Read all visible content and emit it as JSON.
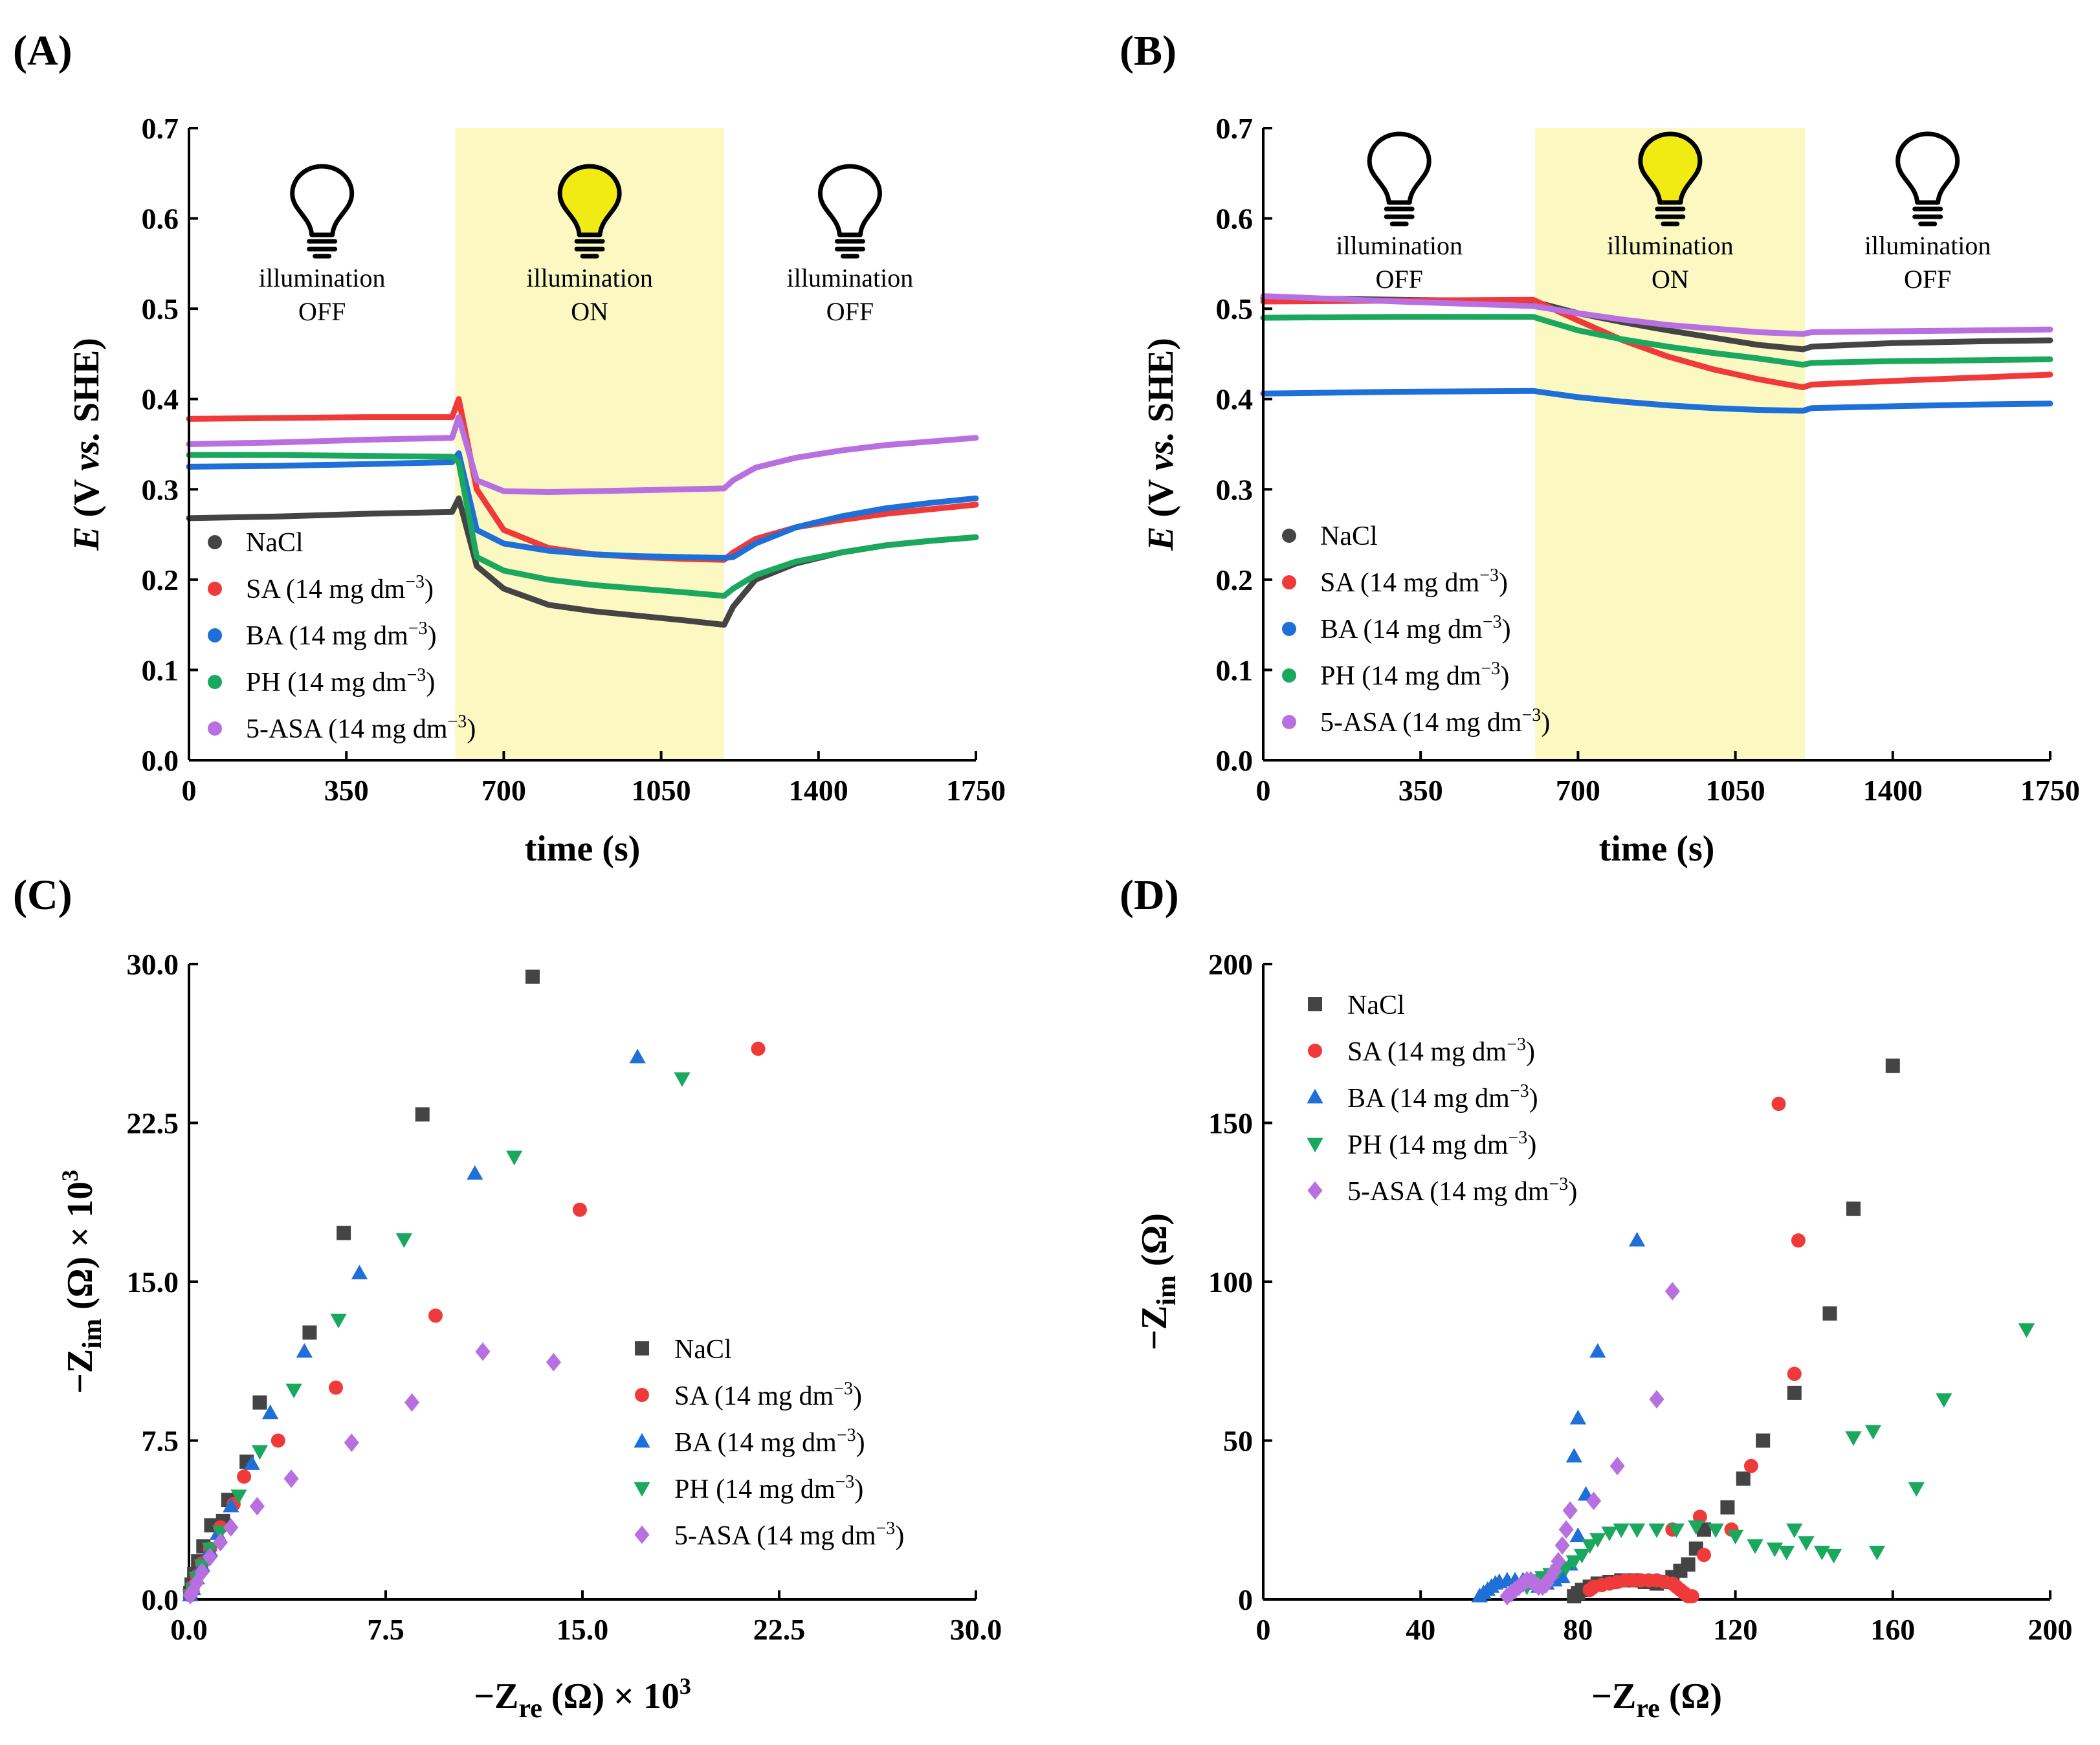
{
  "panels": {
    "A": "(A)",
    "B": "(B)",
    "C": "(C)",
    "D": "(D)"
  },
  "series_colors": {
    "NaCl": "#444444",
    "SA": "#f03a3a",
    "BA": "#1f6fd8",
    "PH": "#1aa85e",
    "5-ASA": "#b870e0"
  },
  "highlight_color": "#fbf8c2",
  "bulb_on_color": "#f2ea13",
  "legend_labels": [
    {
      "key": "NaCl",
      "name": "NaCl",
      "sup": ""
    },
    {
      "key": "SA",
      "name": "SA (14 mg dm",
      "sup": "−3",
      "close": ")"
    },
    {
      "key": "BA",
      "name": "BA (14 mg dm",
      "sup": "−3",
      "close": ")"
    },
    {
      "key": "PH",
      "name": "PH (14 mg dm",
      "sup": "−3",
      "close": ")"
    },
    {
      "key": "5-ASA",
      "name": "5-ASA (14 mg dm",
      "sup": "−3",
      "close": ")"
    }
  ],
  "illumination": {
    "off_top": "illumination",
    "off_bottom": "OFF",
    "on_top": "illumination",
    "on_bottom": "ON"
  },
  "chart_data": [
    {
      "id": "A",
      "type": "line",
      "title": "",
      "xlabel": "time (s)",
      "ylabel": {
        "italic": "E",
        "rest1": " (V ",
        "italic2": "vs.",
        "rest2": " SHE)"
      },
      "xlim": [
        0,
        1750
      ],
      "ylim": [
        0.0,
        0.7
      ],
      "xticks": [
        0,
        350,
        700,
        1050,
        1400,
        1750
      ],
      "xtick_labels": [
        "0",
        "350",
        "700",
        "1050",
        "1400",
        "1750"
      ],
      "yticks": [
        0.0,
        0.1,
        0.2,
        0.3,
        0.4,
        0.5,
        0.6,
        0.7
      ],
      "ytick_labels": [
        "0.0",
        "0.1",
        "0.2",
        "0.3",
        "0.4",
        "0.5",
        "0.6",
        "0.7"
      ],
      "light_on_interval": [
        592,
        1190
      ],
      "legend_position": "lower-left",
      "series": [
        {
          "name": "NaCl",
          "x": [
            0,
            200,
            400,
            585,
            600,
            640,
            700,
            800,
            900,
            1000,
            1100,
            1190,
            1210,
            1260,
            1350,
            1450,
            1550,
            1650,
            1750
          ],
          "values": [
            0.268,
            0.27,
            0.273,
            0.275,
            0.29,
            0.215,
            0.19,
            0.172,
            0.165,
            0.16,
            0.155,
            0.15,
            0.17,
            0.2,
            0.218,
            0.23,
            0.238,
            0.243,
            0.247
          ]
        },
        {
          "name": "SA",
          "x": [
            0,
            200,
            400,
            585,
            600,
            640,
            700,
            800,
            900,
            1000,
            1100,
            1190,
            1210,
            1260,
            1350,
            1450,
            1550,
            1650,
            1750
          ],
          "values": [
            0.378,
            0.379,
            0.38,
            0.38,
            0.4,
            0.3,
            0.255,
            0.235,
            0.228,
            0.225,
            0.223,
            0.222,
            0.23,
            0.245,
            0.258,
            0.266,
            0.273,
            0.278,
            0.283
          ]
        },
        {
          "name": "BA",
          "x": [
            0,
            200,
            400,
            585,
            600,
            640,
            700,
            800,
            900,
            1000,
            1100,
            1190,
            1210,
            1260,
            1350,
            1450,
            1550,
            1650,
            1750
          ],
          "values": [
            0.325,
            0.326,
            0.328,
            0.33,
            0.34,
            0.255,
            0.24,
            0.232,
            0.228,
            0.226,
            0.225,
            0.224,
            0.225,
            0.24,
            0.258,
            0.27,
            0.279,
            0.285,
            0.29
          ]
        },
        {
          "name": "PH",
          "x": [
            0,
            200,
            400,
            585,
            600,
            640,
            700,
            800,
            900,
            1000,
            1100,
            1190,
            1210,
            1260,
            1350,
            1450,
            1550,
            1650,
            1750
          ],
          "values": [
            0.338,
            0.338,
            0.337,
            0.336,
            0.33,
            0.225,
            0.21,
            0.2,
            0.194,
            0.19,
            0.186,
            0.182,
            0.19,
            0.205,
            0.22,
            0.23,
            0.238,
            0.243,
            0.247
          ]
        },
        {
          "name": "5-ASA",
          "x": [
            0,
            200,
            400,
            585,
            600,
            640,
            700,
            800,
            900,
            1000,
            1100,
            1190,
            1210,
            1260,
            1350,
            1450,
            1550,
            1650,
            1750
          ],
          "values": [
            0.35,
            0.352,
            0.355,
            0.357,
            0.38,
            0.31,
            0.298,
            0.297,
            0.298,
            0.299,
            0.3,
            0.301,
            0.31,
            0.324,
            0.335,
            0.343,
            0.349,
            0.353,
            0.357
          ]
        }
      ]
    },
    {
      "id": "B",
      "type": "line",
      "title": "",
      "xlabel": "time (s)",
      "ylabel": {
        "italic": "E",
        "rest1": " (V ",
        "italic2": "vs.",
        "rest2": " SHE)"
      },
      "xlim": [
        0,
        1750
      ],
      "ylim": [
        0.0,
        0.7
      ],
      "xticks": [
        0,
        350,
        700,
        1050,
        1400,
        1750
      ],
      "xtick_labels": [
        "0",
        "350",
        "700",
        "1050",
        "1400",
        "1750"
      ],
      "yticks": [
        0.0,
        0.1,
        0.2,
        0.3,
        0.4,
        0.5,
        0.6,
        0.7
      ],
      "ytick_labels": [
        "0.0",
        "0.1",
        "0.2",
        "0.3",
        "0.4",
        "0.5",
        "0.6",
        "0.7"
      ],
      "light_on_interval": [
        605,
        1205
      ],
      "legend_position": "lower-left",
      "series": [
        {
          "name": "NaCl",
          "x": [
            0,
            300,
            600,
            700,
            800,
            900,
            1000,
            1100,
            1200,
            1220,
            1400,
            1600,
            1750
          ],
          "values": [
            0.512,
            0.51,
            0.508,
            0.495,
            0.485,
            0.476,
            0.468,
            0.46,
            0.455,
            0.458,
            0.462,
            0.464,
            0.465
          ]
        },
        {
          "name": "SA",
          "x": [
            0,
            300,
            600,
            700,
            800,
            900,
            1000,
            1100,
            1200,
            1220,
            1400,
            1600,
            1750
          ],
          "values": [
            0.508,
            0.509,
            0.51,
            0.487,
            0.465,
            0.447,
            0.433,
            0.422,
            0.413,
            0.416,
            0.42,
            0.424,
            0.427
          ]
        },
        {
          "name": "BA",
          "x": [
            0,
            300,
            600,
            700,
            800,
            900,
            1000,
            1100,
            1200,
            1220,
            1400,
            1600,
            1750
          ],
          "values": [
            0.406,
            0.408,
            0.409,
            0.402,
            0.397,
            0.393,
            0.39,
            0.388,
            0.387,
            0.39,
            0.392,
            0.394,
            0.395
          ]
        },
        {
          "name": "PH",
          "x": [
            0,
            300,
            600,
            700,
            800,
            900,
            1000,
            1100,
            1200,
            1220,
            1400,
            1600,
            1750
          ],
          "values": [
            0.49,
            0.491,
            0.491,
            0.476,
            0.466,
            0.458,
            0.451,
            0.445,
            0.438,
            0.44,
            0.442,
            0.443,
            0.444
          ]
        },
        {
          "name": "5-ASA",
          "x": [
            0,
            300,
            600,
            700,
            800,
            900,
            1000,
            1100,
            1200,
            1220,
            1400,
            1600,
            1750
          ],
          "values": [
            0.514,
            0.508,
            0.503,
            0.495,
            0.488,
            0.482,
            0.478,
            0.474,
            0.472,
            0.474,
            0.475,
            0.476,
            0.477
          ]
        }
      ]
    },
    {
      "id": "C",
      "type": "scatter",
      "title": "",
      "xlabel": {
        "pre": "−Z",
        "sub": "re",
        "post": " (Ω) × 10",
        "sup": "3"
      },
      "ylabel": {
        "pre": "−Z",
        "sub": "im",
        "post": " (Ω) × 10",
        "sup": "3"
      },
      "xlim": [
        0.0,
        30.0
      ],
      "ylim": [
        0.0,
        30.0
      ],
      "xticks": [
        0.0,
        7.5,
        15.0,
        22.5,
        30.0
      ],
      "xtick_labels": [
        "0.0",
        "7.5",
        "15.0",
        "22.5",
        "30.0"
      ],
      "yticks": [
        0.0,
        7.5,
        15.0,
        22.5,
        30.0
      ],
      "ytick_labels": [
        "0.0",
        "7.5",
        "15.0",
        "22.5",
        "30.0"
      ],
      "legend_position": "lower-right",
      "series": [
        {
          "name": "NaCl",
          "marker": "square",
          "x": [
            0.05,
            0.1,
            0.2,
            0.35,
            0.55,
            0.85,
            1.3,
            1.5,
            2.2,
            2.7,
            4.6,
            5.9,
            8.9,
            13.1
          ],
          "y": [
            0.3,
            0.7,
            1.2,
            1.8,
            2.5,
            3.5,
            3.7,
            4.7,
            6.5,
            9.3,
            12.6,
            17.3,
            22.9,
            29.4
          ]
        },
        {
          "name": "SA",
          "marker": "circle",
          "x": [
            0.05,
            0.15,
            0.3,
            0.5,
            0.8,
            1.2,
            1.7,
            2.1,
            3.4,
            5.6,
            9.4,
            14.9,
            21.7
          ],
          "y": [
            0.2,
            0.6,
            1.1,
            1.7,
            2.4,
            3.4,
            4.5,
            5.8,
            7.5,
            10.0,
            13.4,
            18.4,
            26.0
          ]
        },
        {
          "name": "BA",
          "marker": "triangle-up",
          "x": [
            0.05,
            0.15,
            0.3,
            0.5,
            0.8,
            1.1,
            1.6,
            2.4,
            3.1,
            4.4,
            6.5,
            10.9,
            17.1
          ],
          "y": [
            0.2,
            0.5,
            1.0,
            1.6,
            2.3,
            3.1,
            4.4,
            6.4,
            8.8,
            11.7,
            15.4,
            20.1,
            25.6
          ]
        },
        {
          "name": "PH",
          "marker": "triangle-down",
          "x": [
            0.05,
            0.15,
            0.3,
            0.5,
            0.8,
            1.2,
            1.9,
            2.7,
            4.0,
            5.7,
            8.2,
            12.4,
            18.8
          ],
          "y": [
            0.2,
            0.5,
            1.0,
            1.6,
            2.4,
            3.2,
            4.9,
            7.0,
            9.9,
            13.2,
            17.0,
            20.9,
            24.6
          ]
        },
        {
          "name": "5-ASA",
          "marker": "diamond",
          "x": [
            0.05,
            0.15,
            0.3,
            0.5,
            0.8,
            1.2,
            1.6,
            2.6,
            3.9,
            6.2,
            8.5,
            11.2,
            13.9
          ],
          "y": [
            0.2,
            0.4,
            0.8,
            1.3,
            2.0,
            2.7,
            3.4,
            4.4,
            5.7,
            7.4,
            9.3,
            11.7,
            11.2
          ]
        }
      ]
    },
    {
      "id": "D",
      "type": "scatter",
      "title": "",
      "xlabel": {
        "pre": "−Z",
        "sub": "re",
        "post": " (Ω)",
        "sup": ""
      },
      "ylabel": {
        "pre": "−Z",
        "sub": "im",
        "post": " (Ω)",
        "sup": ""
      },
      "xlim": [
        0,
        200
      ],
      "ylim": [
        0,
        200
      ],
      "xticks": [
        0,
        40,
        80,
        120,
        160,
        200
      ],
      "xtick_labels": [
        "0",
        "40",
        "80",
        "120",
        "160",
        "200"
      ],
      "yticks": [
        0,
        50,
        100,
        150,
        200
      ],
      "ytick_labels": [
        "0",
        "50",
        "100",
        "150",
        "200"
      ],
      "legend_position": "top-left",
      "series": [
        {
          "name": "NaCl",
          "marker": "square",
          "x": [
            79,
            80,
            81,
            83,
            85,
            88,
            91,
            94,
            97,
            100,
            102,
            104,
            106,
            108,
            110,
            112,
            118,
            122,
            127,
            135,
            144,
            150,
            160
          ],
          "y": [
            1,
            2,
            3,
            4,
            5,
            5.5,
            6,
            6,
            5.5,
            5,
            5.5,
            7,
            9,
            11,
            16,
            22,
            29,
            38,
            50,
            65,
            90,
            123,
            168
          ]
        },
        {
          "name": "SA",
          "marker": "circle",
          "x": [
            83,
            84,
            86,
            88,
            90,
            92,
            94,
            96,
            98,
            100,
            102,
            104,
            105,
            106,
            107,
            108,
            109,
            104,
            111,
            112,
            119,
            124,
            135,
            136,
            131
          ],
          "y": [
            3,
            4,
            4.5,
            5,
            5.5,
            6,
            6,
            6,
            6,
            6,
            5.5,
            5,
            4,
            3,
            2,
            1,
            1,
            22,
            26,
            14,
            22,
            42,
            71,
            113,
            156
          ]
        },
        {
          "name": "BA",
          "marker": "triangle-up",
          "x": [
            55,
            56,
            57,
            58,
            59,
            60,
            62,
            64,
            66,
            68,
            70,
            72,
            74,
            76,
            78,
            80,
            82,
            79,
            80,
            85,
            95
          ],
          "y": [
            1,
            2,
            3,
            4,
            5,
            5.5,
            6,
            6,
            6,
            5,
            4,
            5,
            6,
            7,
            11,
            20,
            33,
            45,
            57,
            78,
            113
          ]
        },
        {
          "name": "PH",
          "marker": "triangle-down",
          "x": [
            67,
            69,
            71,
            73,
            75,
            77,
            79,
            81,
            83,
            85,
            88,
            91,
            95,
            100,
            105,
            110,
            115,
            120,
            125,
            130,
            133,
            135,
            138,
            142,
            145,
            150,
            155,
            156,
            166,
            173,
            194
          ],
          "y": [
            4,
            6,
            7,
            8,
            9,
            10,
            12,
            14,
            17,
            19,
            21,
            22,
            22,
            22,
            22,
            23,
            22,
            20,
            17,
            16,
            15,
            22,
            18,
            15,
            14,
            51,
            53,
            15,
            35,
            63,
            85
          ]
        },
        {
          "name": "5-ASA",
          "marker": "diamond",
          "x": [
            62,
            63,
            64,
            65,
            66,
            67,
            68,
            69,
            70,
            71,
            72,
            73,
            74,
            75,
            76,
            77,
            78,
            84,
            90,
            100,
            104
          ],
          "y": [
            1,
            2,
            3,
            4,
            5,
            6,
            6,
            5,
            4,
            4,
            5,
            7,
            9,
            12,
            17,
            22,
            28,
            31,
            42,
            63,
            97
          ]
        }
      ]
    }
  ]
}
